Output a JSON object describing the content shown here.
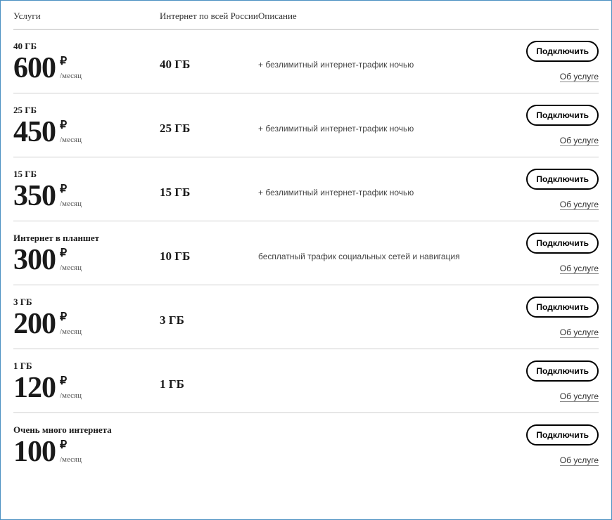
{
  "headers": {
    "service": "Услуги",
    "internet": "Интернет по всей России",
    "description": "Описание"
  },
  "currency_symbol": "₽",
  "per_month_label": "/месяц",
  "connect_label": "Подключить",
  "about_label": "Об услуге",
  "plans": [
    {
      "title": "40 ГБ",
      "price": "600",
      "internet": "40 ГБ",
      "description": "+ безлимитный интернет-трафик ночью"
    },
    {
      "title": "25 ГБ",
      "price": "450",
      "internet": "25 ГБ",
      "description": "+ безлимитный интернет-трафик ночью"
    },
    {
      "title": "15 ГБ",
      "price": "350",
      "internet": "15 ГБ",
      "description": "+ безлимитный интернет-трафик ночью"
    },
    {
      "title": "Интернет в планшет",
      "price": "300",
      "internet": "10 ГБ",
      "description": "бесплатный трафик социальных сетей и навигация"
    },
    {
      "title": "3 ГБ",
      "price": "200",
      "internet": "3 ГБ",
      "description": ""
    },
    {
      "title": "1 ГБ",
      "price": "120",
      "internet": "1 ГБ",
      "description": ""
    },
    {
      "title": "Очень много интернета",
      "price": "100",
      "internet": "",
      "description": ""
    }
  ]
}
